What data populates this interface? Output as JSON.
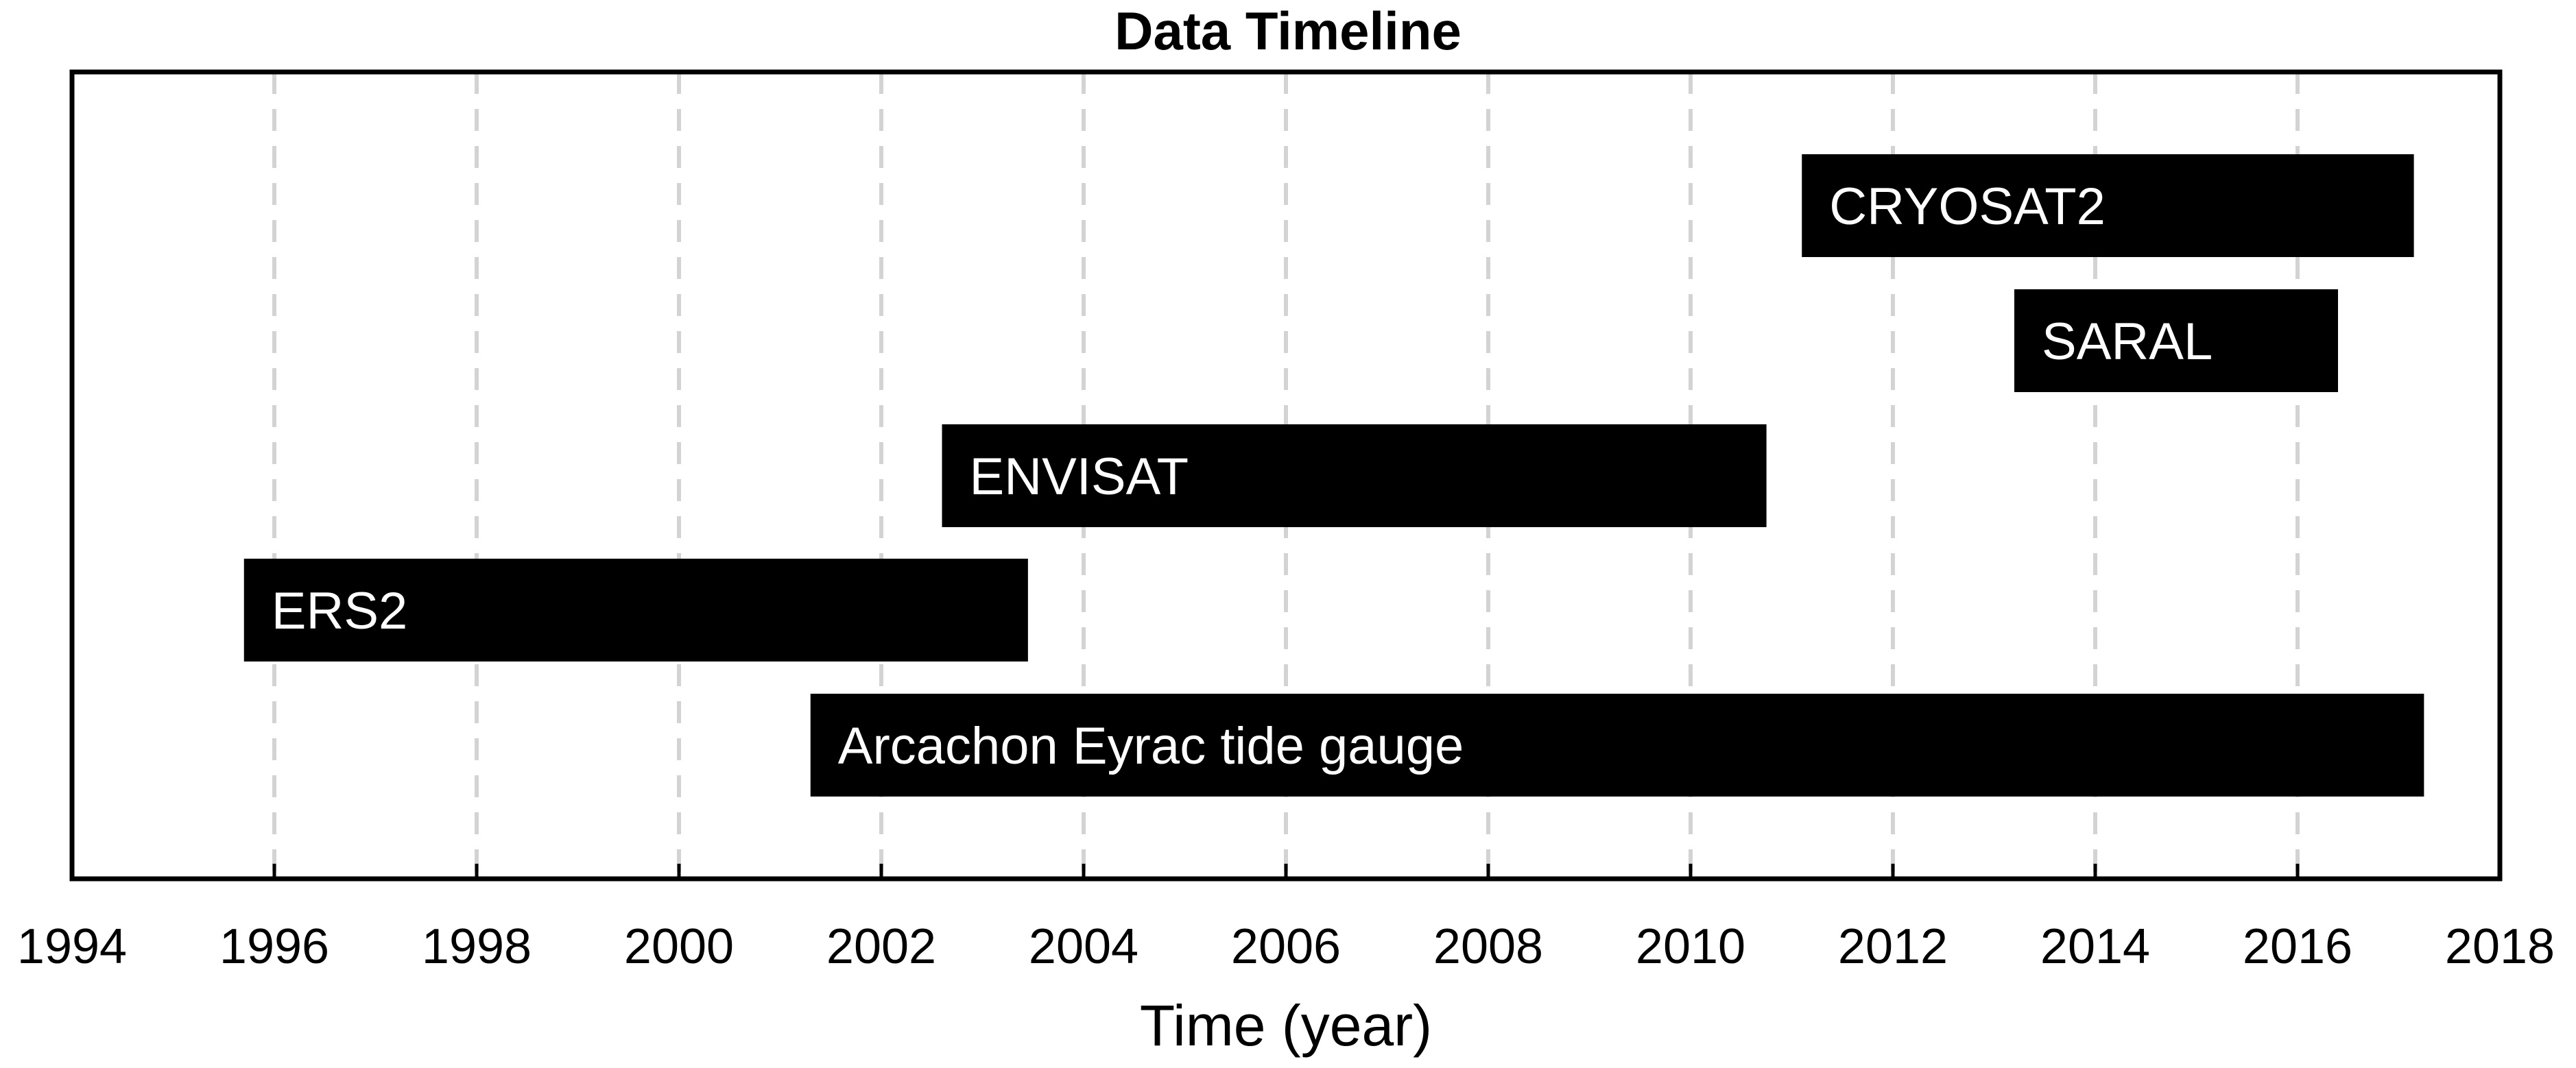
{
  "chart_data": {
    "type": "timeline",
    "title": "Data Timeline",
    "xlabel": "Time (year)",
    "ylabel": "",
    "xlim": [
      1994,
      2018
    ],
    "xticks": [
      1994,
      1996,
      1998,
      2000,
      2002,
      2004,
      2006,
      2008,
      2010,
      2012,
      2014,
      2016,
      2018
    ],
    "grid": {
      "x": true,
      "style": "dashed",
      "color": "#d3d3d3"
    },
    "bar_color": "#000000",
    "label_color": "#ffffff",
    "series": [
      {
        "name": "CRYOSAT2",
        "start": 2011.1,
        "end": 2017.15
      },
      {
        "name": "SARAL",
        "start": 2013.2,
        "end": 2016.4
      },
      {
        "name": "ENVISAT",
        "start": 2002.6,
        "end": 2010.75
      },
      {
        "name": "ERS2",
        "start": 1995.7,
        "end": 2003.45
      },
      {
        "name": "Arcachon Eyrac tide gauge",
        "start": 2001.3,
        "end": 2017.25
      }
    ]
  }
}
